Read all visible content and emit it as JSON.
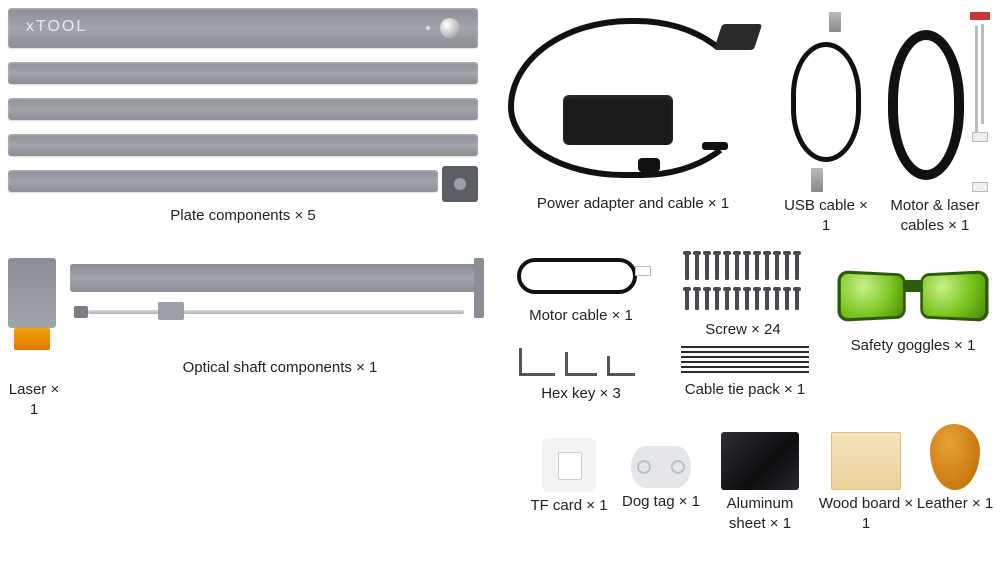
{
  "brand": "xTOOL",
  "colors": {
    "metal": "#8b8e94",
    "metal_light": "#a1a4aa",
    "laser_orange": "#f59e0b",
    "cable_black": "#111111",
    "goggle_green": "#76c21a",
    "goggle_dark": "#2d5a09",
    "leather": "#c9780d",
    "wood": "#ebd39a",
    "aluminum": "#1a1c20",
    "text": "#222222"
  },
  "left": {
    "plate_label": "Plate components × 5",
    "optical_label": "Optical shaft components × 1",
    "laser_label": "Laser × 1"
  },
  "right": {
    "power": "Power adapter and cable × 1",
    "usb": "USB cable × 1",
    "motor_laser": "Motor & laser cables × 1",
    "motor_cable": "Motor cable × 1",
    "hex": "Hex key × 3",
    "screw": "Screw × 24",
    "ties": "Cable tie pack × 1",
    "goggles": "Safety goggles × 1",
    "tf": "TF card × 1",
    "dog": "Dog tag × 1",
    "alum": "Aluminum sheet × 1",
    "wood": "Wood board × 1",
    "leather": "Leather × 1"
  },
  "screws": {
    "count": 24,
    "rows": 2,
    "cols": 12,
    "row1_h": 26,
    "row2_h": 20,
    "spacing": 10
  },
  "ties": {
    "count": 6,
    "spacing": 5
  }
}
